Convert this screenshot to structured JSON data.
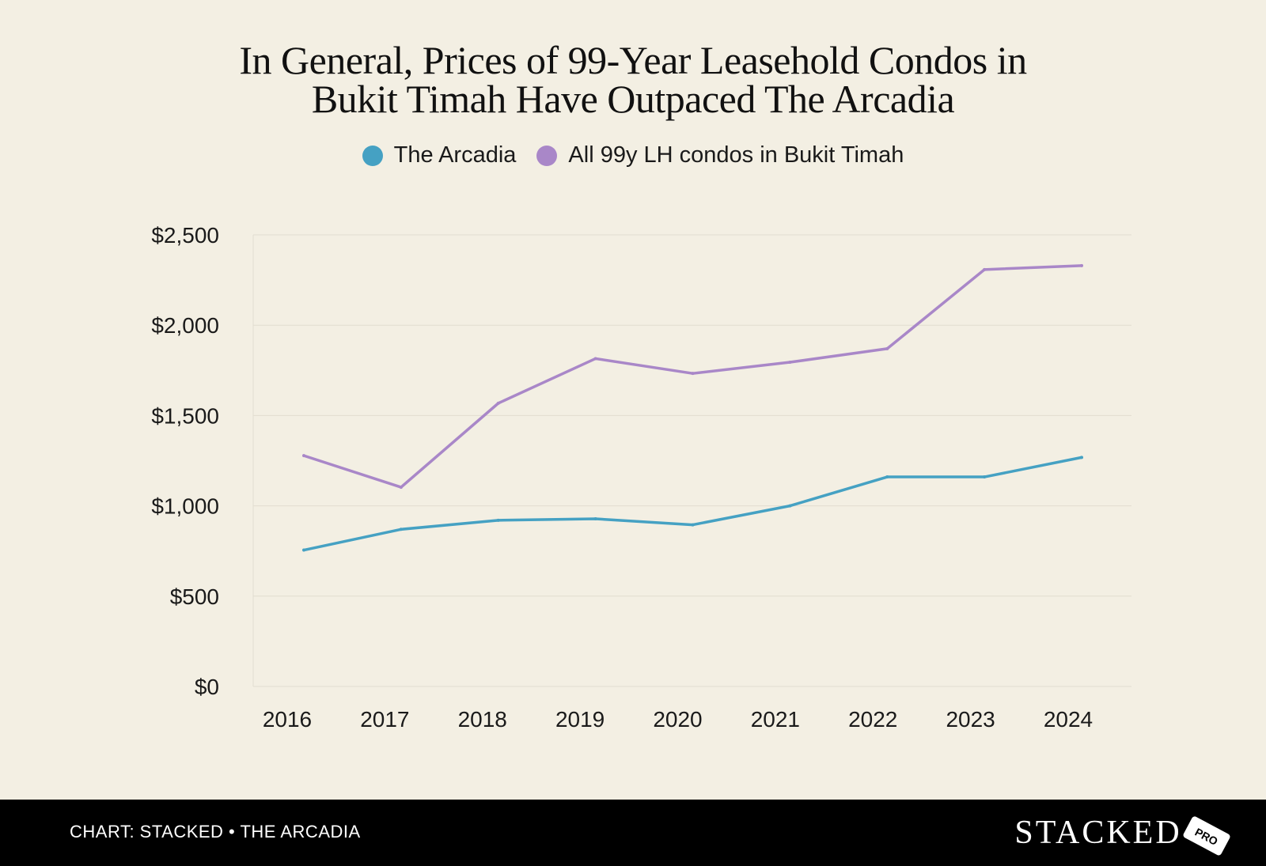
{
  "chart_data": {
    "type": "line",
    "title_lines": [
      "In General, Prices of 99-Year Leasehold Condos in",
      "Bukit Timah Have Outpaced The Arcadia"
    ],
    "categories": [
      "2016",
      "2017",
      "2018",
      "2019",
      "2020",
      "2021",
      "2022",
      "2023",
      "2024"
    ],
    "series": [
      {
        "name": "The Arcadia",
        "color": "#45a1c3",
        "values": [
          755,
          870,
          920,
          928,
          895,
          1000,
          1160,
          1160,
          1268
        ]
      },
      {
        "name": "All 99y LH condos in Bukit Timah",
        "color": "#a987c8",
        "values": [
          1278,
          1103,
          1568,
          1815,
          1733,
          1795,
          1870,
          2308,
          2330
        ]
      }
    ],
    "y_ticks": [
      0,
      500,
      1000,
      1500,
      2000,
      2500
    ],
    "y_tick_labels": [
      "$0",
      "$500",
      "$1,000",
      "$1,500",
      "$2,000",
      "$2,500"
    ],
    "ylim": [
      0,
      2500
    ],
    "xlabel": "",
    "ylabel": "",
    "grid": true,
    "legend_position": "top-center"
  },
  "footer": {
    "credit": "CHART: STACKED • THE ARCADIA",
    "brand": "STACKED",
    "brand_tag": "PRO"
  },
  "colors": {
    "background": "#f3efe3",
    "footer_bg": "#000000",
    "grid": "#e2ddd0"
  }
}
